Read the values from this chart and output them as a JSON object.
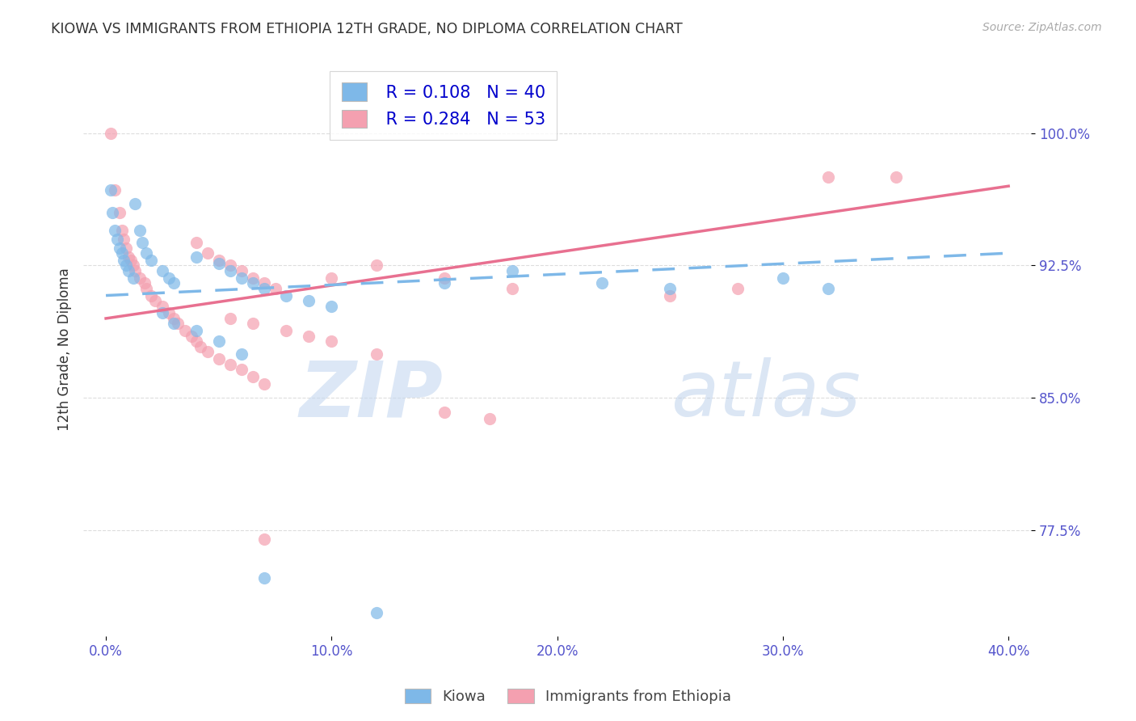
{
  "title": "KIOWA VS IMMIGRANTS FROM ETHIOPIA 12TH GRADE, NO DIPLOMA CORRELATION CHART",
  "source": "Source: ZipAtlas.com",
  "xlabel_ticks": [
    "0.0%",
    "10.0%",
    "20.0%",
    "30.0%",
    "40.0%"
  ],
  "xlabel_tick_vals": [
    0.0,
    0.1,
    0.2,
    0.3,
    0.4
  ],
  "ylabel": "12th Grade, No Diploma",
  "ylabel_ticks": [
    "77.5%",
    "85.0%",
    "92.5%",
    "100.0%"
  ],
  "ylabel_tick_vals": [
    0.775,
    0.85,
    0.925,
    1.0
  ],
  "xlim": [
    -0.01,
    0.41
  ],
  "ylim": [
    0.715,
    1.04
  ],
  "kiowa_R": 0.108,
  "kiowa_N": 40,
  "ethiopia_R": 0.284,
  "ethiopia_N": 53,
  "kiowa_color": "#7EB8E8",
  "ethiopia_color": "#F4A0B0",
  "kiowa_scatter": [
    [
      0.002,
      0.968
    ],
    [
      0.003,
      0.955
    ],
    [
      0.004,
      0.945
    ],
    [
      0.005,
      0.94
    ],
    [
      0.006,
      0.935
    ],
    [
      0.007,
      0.932
    ],
    [
      0.008,
      0.928
    ],
    [
      0.009,
      0.925
    ],
    [
      0.01,
      0.922
    ],
    [
      0.012,
      0.918
    ],
    [
      0.013,
      0.96
    ],
    [
      0.015,
      0.945
    ],
    [
      0.016,
      0.938
    ],
    [
      0.018,
      0.932
    ],
    [
      0.02,
      0.928
    ],
    [
      0.025,
      0.922
    ],
    [
      0.028,
      0.918
    ],
    [
      0.03,
      0.915
    ],
    [
      0.04,
      0.93
    ],
    [
      0.05,
      0.926
    ],
    [
      0.055,
      0.922
    ],
    [
      0.06,
      0.918
    ],
    [
      0.065,
      0.915
    ],
    [
      0.07,
      0.912
    ],
    [
      0.08,
      0.908
    ],
    [
      0.09,
      0.905
    ],
    [
      0.1,
      0.902
    ],
    [
      0.15,
      0.915
    ],
    [
      0.18,
      0.922
    ],
    [
      0.22,
      0.915
    ],
    [
      0.25,
      0.912
    ],
    [
      0.3,
      0.918
    ],
    [
      0.32,
      0.912
    ],
    [
      0.025,
      0.898
    ],
    [
      0.03,
      0.892
    ],
    [
      0.04,
      0.888
    ],
    [
      0.05,
      0.882
    ],
    [
      0.06,
      0.875
    ],
    [
      0.07,
      0.748
    ],
    [
      0.12,
      0.728
    ]
  ],
  "ethiopia_scatter": [
    [
      0.002,
      1.0
    ],
    [
      0.004,
      0.968
    ],
    [
      0.006,
      0.955
    ],
    [
      0.007,
      0.945
    ],
    [
      0.008,
      0.94
    ],
    [
      0.009,
      0.935
    ],
    [
      0.01,
      0.93
    ],
    [
      0.011,
      0.928
    ],
    [
      0.012,
      0.925
    ],
    [
      0.013,
      0.922
    ],
    [
      0.015,
      0.918
    ],
    [
      0.017,
      0.915
    ],
    [
      0.018,
      0.912
    ],
    [
      0.02,
      0.908
    ],
    [
      0.022,
      0.905
    ],
    [
      0.025,
      0.902
    ],
    [
      0.028,
      0.898
    ],
    [
      0.03,
      0.895
    ],
    [
      0.032,
      0.892
    ],
    [
      0.035,
      0.888
    ],
    [
      0.038,
      0.885
    ],
    [
      0.04,
      0.882
    ],
    [
      0.042,
      0.879
    ],
    [
      0.045,
      0.876
    ],
    [
      0.05,
      0.872
    ],
    [
      0.055,
      0.869
    ],
    [
      0.06,
      0.866
    ],
    [
      0.065,
      0.862
    ],
    [
      0.07,
      0.858
    ],
    [
      0.04,
      0.938
    ],
    [
      0.045,
      0.932
    ],
    [
      0.05,
      0.928
    ],
    [
      0.055,
      0.925
    ],
    [
      0.06,
      0.922
    ],
    [
      0.065,
      0.918
    ],
    [
      0.07,
      0.915
    ],
    [
      0.075,
      0.912
    ],
    [
      0.1,
      0.918
    ],
    [
      0.12,
      0.925
    ],
    [
      0.15,
      0.918
    ],
    [
      0.18,
      0.912
    ],
    [
      0.25,
      0.908
    ],
    [
      0.28,
      0.912
    ],
    [
      0.32,
      0.975
    ],
    [
      0.35,
      0.975
    ],
    [
      0.055,
      0.895
    ],
    [
      0.065,
      0.892
    ],
    [
      0.08,
      0.888
    ],
    [
      0.09,
      0.885
    ],
    [
      0.1,
      0.882
    ],
    [
      0.12,
      0.875
    ],
    [
      0.15,
      0.842
    ],
    [
      0.17,
      0.838
    ],
    [
      0.07,
      0.77
    ]
  ],
  "kiowa_trendline_x": [
    0.0,
    0.4
  ],
  "kiowa_trendline_y": [
    0.908,
    0.932
  ],
  "ethiopia_trendline_x": [
    0.0,
    0.4
  ],
  "ethiopia_trendline_y": [
    0.895,
    0.97
  ],
  "watermark_zip": "ZIP",
  "watermark_atlas": "atlas",
  "background_color": "#ffffff",
  "grid_color": "#dddddd",
  "tick_color": "#5555cc",
  "legend_text_color": "#0000cc",
  "title_color": "#333333"
}
